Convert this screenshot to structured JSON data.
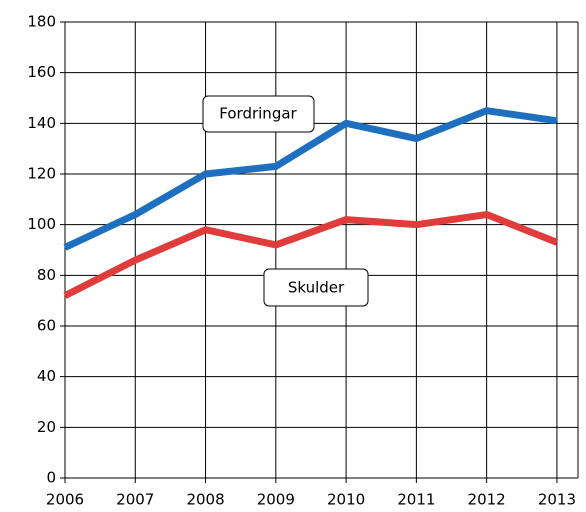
{
  "chart_data": {
    "type": "line",
    "x": [
      2006,
      2007,
      2008,
      2009,
      2010,
      2011,
      2012,
      2013
    ],
    "xlim": [
      2006,
      2013.3
    ],
    "xticks": [
      2006,
      2007,
      2008,
      2009,
      2010,
      2011,
      2012,
      2013
    ],
    "ylim": [
      0,
      180
    ],
    "yticks": [
      0,
      20,
      40,
      60,
      80,
      100,
      120,
      140,
      160,
      180
    ],
    "grid": true,
    "series": [
      {
        "name": "Fordringar",
        "color": "#1f6fc0",
        "values": [
          91,
          104,
          120,
          123,
          140,
          134,
          145,
          141
        ]
      },
      {
        "name": "Skulder",
        "color": "#e03c3c",
        "values": [
          72,
          86,
          98,
          92,
          102,
          100,
          104,
          93
        ]
      }
    ]
  }
}
